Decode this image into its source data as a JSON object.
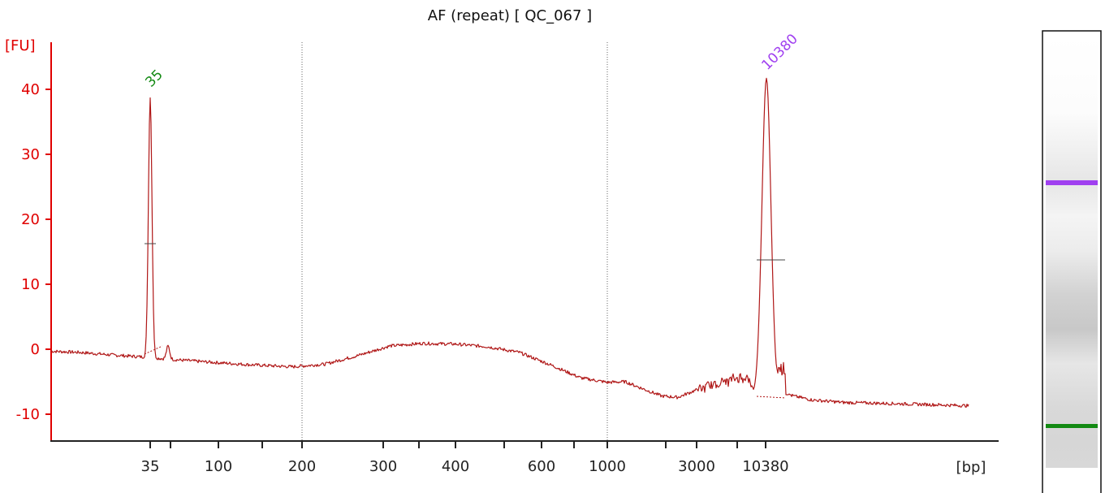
{
  "chart_data": {
    "type": "line",
    "title": "AF (repeat)  [ QC_067 ]",
    "ylabel": "[FU]",
    "xlabel": "[bp]",
    "ylim": [
      -14,
      47
    ],
    "y_ticks": [
      -10,
      0,
      10,
      20,
      30,
      40
    ],
    "x_tick_labels": [
      "35",
      "100",
      "200",
      "300",
      "400",
      "600",
      "1000",
      "3000",
      "10380"
    ],
    "marker_labels": [
      {
        "text": "35",
        "color": "#138a13"
      },
      {
        "text": "10380",
        "color": "#a040f0"
      }
    ],
    "peaks": [
      {
        "size_bp": "35",
        "height_fu": 38.8,
        "half_height_fu": 16.2
      },
      {
        "size_bp": "10380",
        "height_fu": 41.7,
        "half_height_fu": 13.7
      }
    ],
    "series": [
      {
        "values": [
          [
            -0.3
          ],
          [
            -0.5
          ],
          [
            -0.9
          ],
          [
            -1.2
          ],
          [
            -1.6
          ],
          [
            -2.0
          ],
          [
            -2.4
          ],
          [
            -2.7
          ],
          [
            -2.3
          ],
          [
            -1.0
          ],
          [
            0.5
          ],
          [
            0.9
          ],
          [
            0.8
          ],
          [
            0.4
          ],
          [
            -0.5
          ],
          [
            -2.5
          ],
          [
            -4.4
          ],
          [
            -5.1
          ],
          [
            -5.0
          ],
          [
            -6.0
          ],
          [
            -7.2
          ],
          [
            -7.4
          ],
          [
            -6.4
          ],
          [
            -5.6
          ],
          [
            -4.4
          ],
          [
            -4.3
          ],
          [
            -6.8
          ],
          [
            -7.0
          ],
          [
            -7.8
          ],
          [
            -8.2
          ],
          [
            -8.3
          ],
          [
            -8.5
          ],
          [
            -8.7
          ]
        ]
      }
    ],
    "colors": {
      "trace": "#b01818",
      "axis": "#e00000",
      "lower_marker": "#138a13",
      "upper_marker": "#a040f0"
    }
  },
  "gel_lane": {
    "upper_marker_color": "#a040f0",
    "lower_marker_color": "#138a13"
  }
}
